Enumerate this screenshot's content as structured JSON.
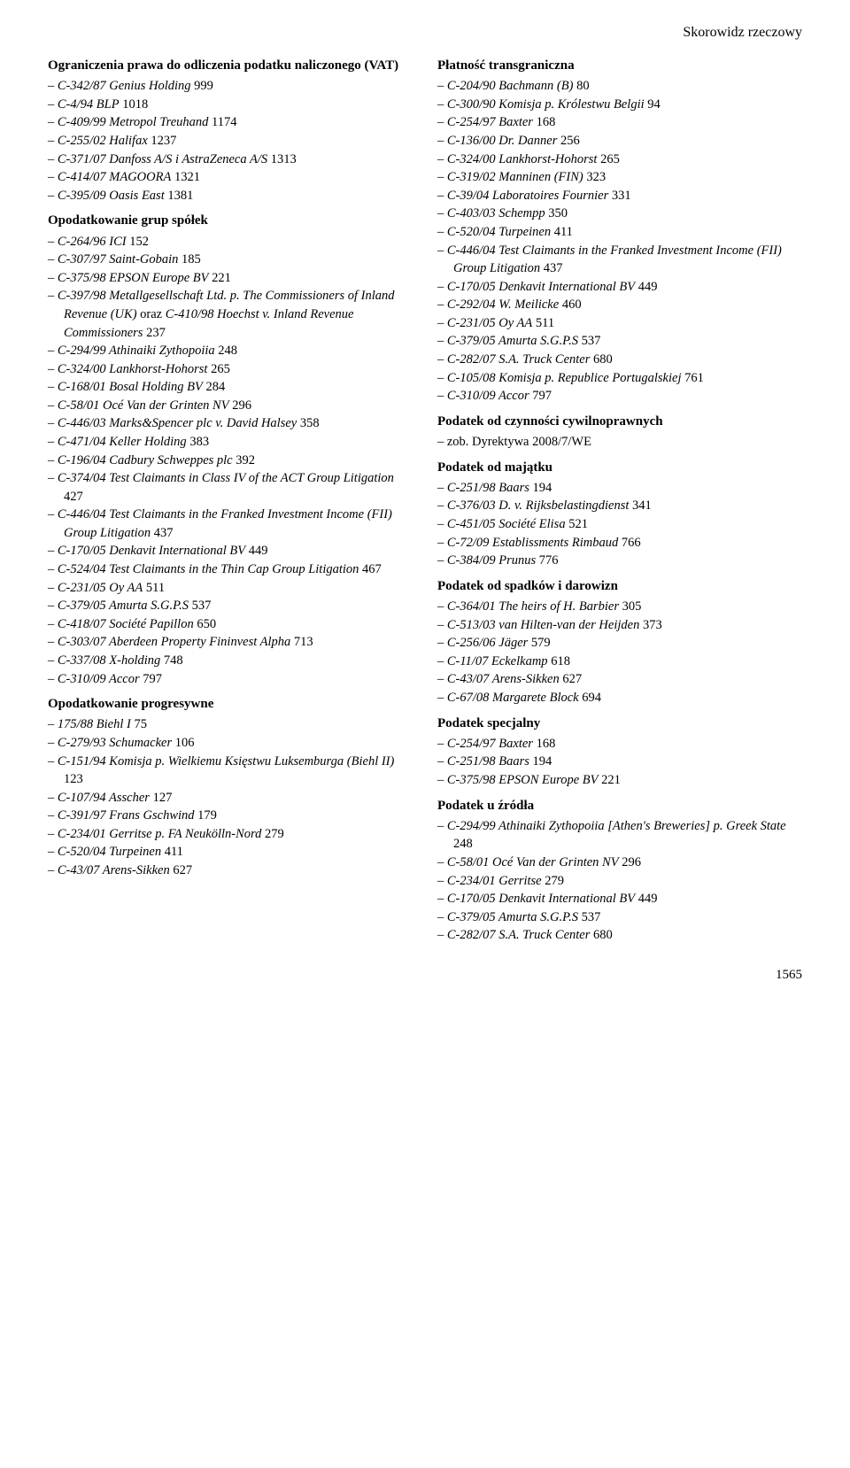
{
  "header": "Skorowidz rzeczowy",
  "pageNumber": "1565",
  "left": {
    "s1": {
      "title": "Ograniczenia prawa do odliczenia podatku naliczonego (VAT)",
      "items": [
        {
          "pre": "– ",
          "it": "C-342/87 Genius Holding",
          "n": "  999"
        },
        {
          "pre": "– ",
          "it": "C-4/94 BLP",
          "n": "  1018"
        },
        {
          "pre": "– ",
          "it": "C-409/99 Metropol Treuhand",
          "n": "  1174"
        },
        {
          "pre": "– ",
          "it": "C-255/02 Halifax",
          "n": "  1237"
        },
        {
          "pre": "– ",
          "it": "C-371/07 Danfoss A/S i AstraZeneca A/S",
          "n": "  1313"
        },
        {
          "pre": "– ",
          "it": "C-414/07 MAGOORA",
          "n": "  1321"
        },
        {
          "pre": "– ",
          "it": "C-395/09 Oasis East",
          "n": "  1381"
        }
      ]
    },
    "s2": {
      "title": "Opodatkowanie grup spółek",
      "items": [
        {
          "pre": "– ",
          "it": "C-264/96 ICI",
          "n": "  152"
        },
        {
          "pre": "– ",
          "it": "C-307/97 Saint-Gobain",
          "n": "  185"
        },
        {
          "pre": "– ",
          "it": "C-375/98 EPSON Europe BV",
          "n": "  221"
        },
        {
          "pre": "– ",
          "it": "C-397/98 Metallgesellschaft Ltd. p. The Commissioners of Inland Revenue (UK) ",
          "tail": "oraz ",
          "it2": "C-410/98 Hoechst v. Inland Revenue Commissioners",
          "n": "  237"
        },
        {
          "pre": "– ",
          "it": "C-294/99 Athinaiki Zythopoiia",
          "n": "  248"
        },
        {
          "pre": "– ",
          "it": "C-324/00 Lankhorst-Hohorst",
          "n": "  265"
        },
        {
          "pre": "– ",
          "it": "C-168/01 Bosal Holding BV",
          "n": "  284"
        },
        {
          "pre": "– ",
          "it": "C-58/01 Océ Van der Grinten NV",
          "n": "  296"
        },
        {
          "pre": "– ",
          "it": "C-446/03 Marks&Spencer plc v. David Halsey",
          "n": "  358"
        },
        {
          "pre": "– ",
          "it": "C-471/04 Keller Holding",
          "n": "  383"
        },
        {
          "pre": "– ",
          "it": "C-196/04 Cadbury Schweppes plc",
          "n": "  392"
        },
        {
          "pre": "– ",
          "it": "C-374/04 Test Claimants in Class IV of the ACT Group Litigation",
          "n": "  427"
        },
        {
          "pre": "– ",
          "it": "C-446/04 Test Claimants in the Franked Investment Income (FII) Group Litigation",
          "n": "  437"
        },
        {
          "pre": "– ",
          "it": "C-170/05 Denkavit International BV",
          "n": "  449"
        },
        {
          "pre": "– ",
          "it": "C-524/04 Test Claimants in the Thin Cap Group Litigation",
          "n": "  467"
        },
        {
          "pre": "– ",
          "it": "C-231/05 Oy AA",
          "n": "  511"
        },
        {
          "pre": "– ",
          "it": "C-379/05 Amurta S.G.P.S",
          "n": "  537"
        },
        {
          "pre": "– ",
          "it": "C-418/07 Société Papillon",
          "n": "  650"
        },
        {
          "pre": "– ",
          "it": "C-303/07 Aberdeen Property Fininvest Alpha",
          "n": "  713"
        },
        {
          "pre": "– ",
          "it": "C-337/08 X-holding",
          "n": "  748"
        },
        {
          "pre": "– ",
          "it": "C-310/09 Accor",
          "n": "  797"
        }
      ]
    },
    "s3": {
      "title": "Opodatkowanie progresywne",
      "items": [
        {
          "pre": "– ",
          "it": "175/88 Biehl I",
          "n": "  75"
        },
        {
          "pre": "– ",
          "it": "C-279/93 Schumacker",
          "n": "  106"
        },
        {
          "pre": "– ",
          "it": "C-151/94 Komisja p. Wielkiemu Księstwu Luksemburga (Biehl II)",
          "n": "  123"
        },
        {
          "pre": "– ",
          "it": "C-107/94 Asscher",
          "n": "  127"
        },
        {
          "pre": "– ",
          "it": "C-391/97 Frans Gschwind",
          "n": "  179"
        },
        {
          "pre": "– ",
          "it": "C-234/01 Gerritse p. FA Neukölln-Nord",
          "n": "  279"
        },
        {
          "pre": "– ",
          "it": "C-520/04 Turpeinen",
          "n": "  411"
        },
        {
          "pre": "– ",
          "it": "C-43/07 Arens-Sikken",
          "n": "  627"
        }
      ]
    }
  },
  "right": {
    "s1": {
      "title": "Płatność transgraniczna",
      "items": [
        {
          "pre": "– ",
          "it": "C-204/90 Bachmann (B)",
          "n": "  80"
        },
        {
          "pre": "– ",
          "it": "C-300/90 Komisja p. Królestwu Belgii",
          "n": "  94"
        },
        {
          "pre": "– ",
          "it": "C-254/97 Baxter",
          "n": "  168"
        },
        {
          "pre": "– ",
          "it": "C-136/00 Dr. Danner",
          "n": "  256"
        },
        {
          "pre": "– ",
          "it": "C-324/00 Lankhorst-Hohorst",
          "n": "  265"
        },
        {
          "pre": "– ",
          "it": "C-319/02 Manninen (FIN)",
          "n": "  323"
        },
        {
          "pre": "– ",
          "it": "C-39/04 Laboratoires Fournier",
          "n": "  331"
        },
        {
          "pre": "– ",
          "it": "C-403/03 Schempp",
          "n": "  350"
        },
        {
          "pre": "– ",
          "it": "C-520/04 Turpeinen",
          "n": "  411"
        },
        {
          "pre": "– ",
          "it": "C-446/04 Test Claimants in the Franked Investment Income (FII) Group Litigation",
          "n": "  437"
        },
        {
          "pre": "– ",
          "it": "C-170/05 Denkavit International BV",
          "n": "  449"
        },
        {
          "pre": "– ",
          "it": "C-292/04 W. Meilicke",
          "n": "  460"
        },
        {
          "pre": "– ",
          "it": "C-231/05 Oy AA",
          "n": "  511"
        },
        {
          "pre": "– ",
          "it": "C-379/05 Amurta S.G.P.S",
          "n": "  537"
        },
        {
          "pre": "– ",
          "it": "C-282/07 S.A. Truck Center",
          "n": "  680"
        },
        {
          "pre": "– ",
          "it": "C-105/08 Komisja p. Republice Portugalskiej",
          "n": "  761"
        },
        {
          "pre": "– ",
          "it": "C-310/09 Accor",
          "n": "  797"
        }
      ]
    },
    "s2": {
      "title": "Podatek od czynności cywilnoprawnych",
      "plain": "– zob. Dyrektywa 2008/7/WE"
    },
    "s3": {
      "title": "Podatek od majątku",
      "items": [
        {
          "pre": "– ",
          "it": "C-251/98 Baars",
          "n": "  194"
        },
        {
          "pre": "– ",
          "it": "C-376/03 D. v. Rijksbelastingdienst",
          "n": "  341"
        },
        {
          "pre": "– ",
          "it": "C-451/05 Société Elisa",
          "n": "  521"
        },
        {
          "pre": "– ",
          "it": "C-72/09 Establissments Rimbaud",
          "n": "  766"
        },
        {
          "pre": "– ",
          "it": "C-384/09 Prunus",
          "n": "  776"
        }
      ]
    },
    "s4": {
      "title": "Podatek od spadków i darowizn",
      "items": [
        {
          "pre": "– ",
          "it": "C-364/01 The heirs of H. Barbier",
          "n": "  305"
        },
        {
          "pre": "– ",
          "it": "C-513/03 van Hilten-van der Heijden",
          "n": "  373"
        },
        {
          "pre": "– ",
          "it": "C-256/06 Jäger",
          "n": "  579"
        },
        {
          "pre": "– ",
          "it": "C-11/07 Eckelkamp",
          "n": "  618"
        },
        {
          "pre": "– ",
          "it": "C-43/07 Arens-Sikken",
          "n": "  627"
        },
        {
          "pre": "– ",
          "it": "C-67/08 Margarete Block",
          "n": "  694"
        }
      ]
    },
    "s5": {
      "title": "Podatek specjalny",
      "items": [
        {
          "pre": "– ",
          "it": "C-254/97 Baxter",
          "n": "  168"
        },
        {
          "pre": "– ",
          "it": "C-251/98 Baars",
          "n": "  194"
        },
        {
          "pre": "– ",
          "it": "C-375/98 EPSON Europe BV",
          "n": "  221"
        }
      ]
    },
    "s6": {
      "title": "Podatek u źródła",
      "items": [
        {
          "pre": "– ",
          "it": "C-294/99 Athinaiki Zythopoiia [Athen's Breweries] p. Greek State",
          "n": "  248"
        },
        {
          "pre": "– ",
          "it": "C-58/01 Océ Van der Grinten NV",
          "n": "  296"
        },
        {
          "pre": "– ",
          "it": "C-234/01 Gerritse",
          "n": "  279"
        },
        {
          "pre": "– ",
          "it": "C-170/05 Denkavit International BV",
          "n": "  449"
        },
        {
          "pre": "– ",
          "it": "C-379/05 Amurta S.G.P.S",
          "n": "  537"
        },
        {
          "pre": "– ",
          "it": "C-282/07 S.A. Truck Center",
          "n": "  680"
        }
      ]
    }
  }
}
